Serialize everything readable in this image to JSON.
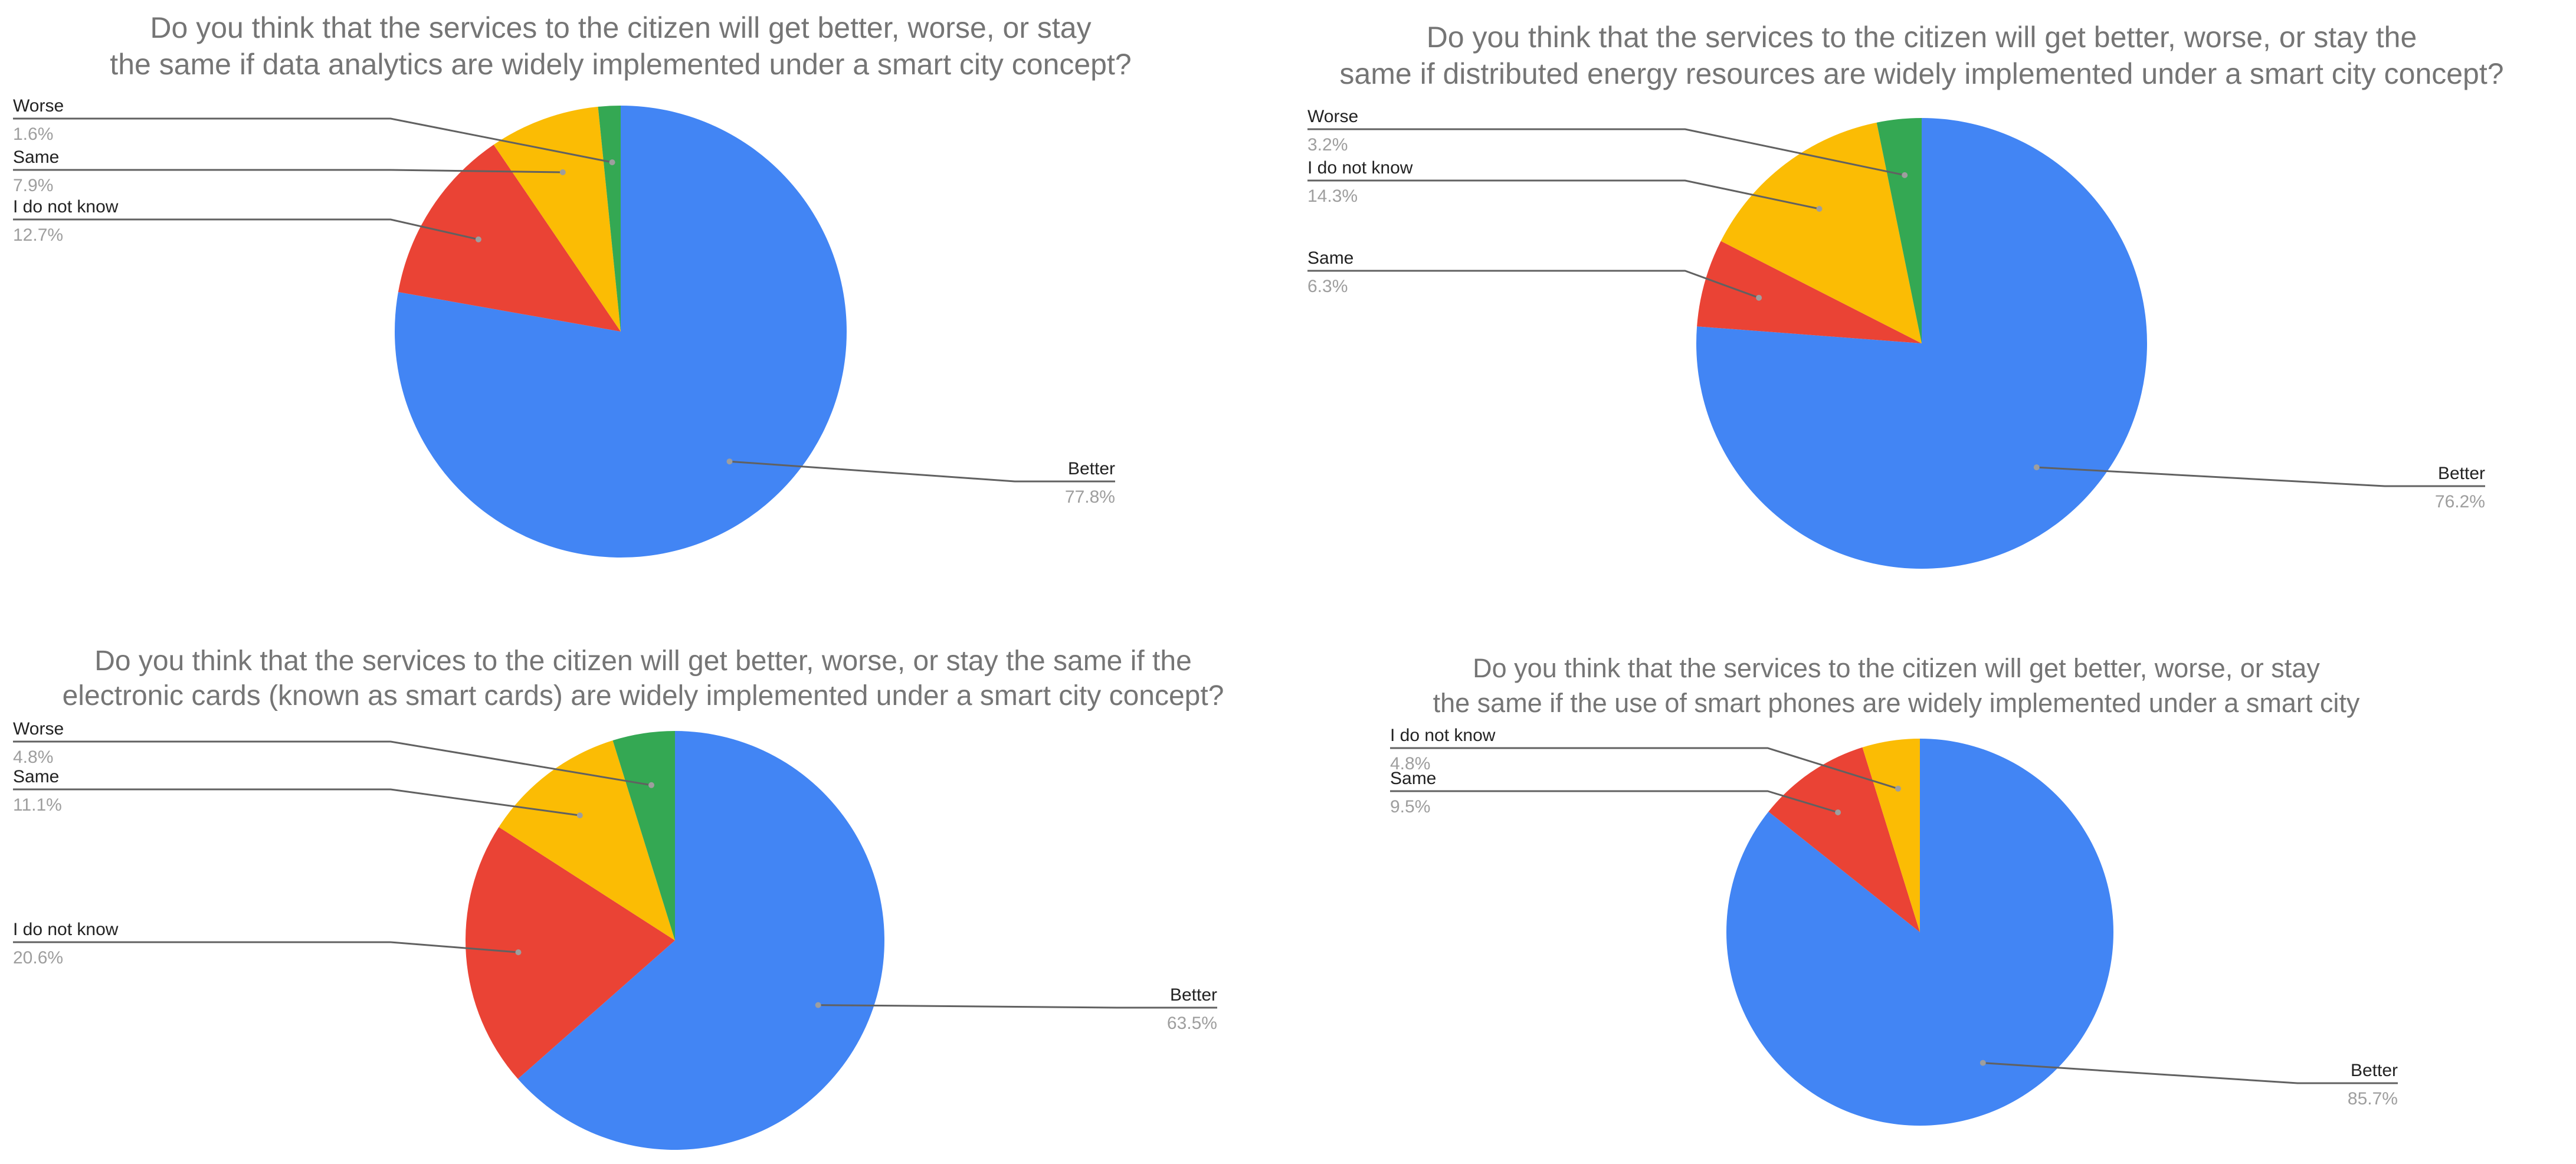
{
  "chart_data": [
    {
      "type": "pie",
      "title_lines": [
        "Do you think that the services to the citizen will get better, worse, or stay",
        "the same if data analytics are widely implemented under a smart city concept?"
      ],
      "slices": [
        {
          "label": "Better",
          "value": 77.8,
          "value_label": "77.8%",
          "color": "#4285f4"
        },
        {
          "label": "I do not know",
          "value": 12.7,
          "value_label": "12.7%",
          "color": "#ea4335"
        },
        {
          "label": "Same",
          "value": 7.9,
          "value_label": "7.9%",
          "color": "#fbbc04"
        },
        {
          "label": "Worse",
          "value": 1.6,
          "value_label": "1.6%",
          "color": "#34a853"
        }
      ]
    },
    {
      "type": "pie",
      "title_lines": [
        "Do you think that the services to the citizen will get better, worse, or stay the",
        "same if distributed energy resources are widely implemented under a smart city concept?"
      ],
      "slices": [
        {
          "label": "Better",
          "value": 76.2,
          "value_label": "76.2%",
          "color": "#4285f4"
        },
        {
          "label": "Same",
          "value": 6.3,
          "value_label": "6.3%",
          "color": "#ea4335"
        },
        {
          "label": "I do not know",
          "value": 14.3,
          "value_label": "14.3%",
          "color": "#fbbc04"
        },
        {
          "label": "Worse",
          "value": 3.2,
          "value_label": "3.2%",
          "color": "#34a853"
        }
      ]
    },
    {
      "type": "pie",
      "title_lines": [
        "Do you think that the services to the citizen will get better, worse, or stay the same if the",
        "electronic cards (known as smart cards) are widely implemented under a smart city concept?"
      ],
      "slices": [
        {
          "label": "Better",
          "value": 63.5,
          "value_label": "63.5%",
          "color": "#4285f4"
        },
        {
          "label": "I do not know",
          "value": 20.6,
          "value_label": "20.6%",
          "color": "#ea4335"
        },
        {
          "label": "Same",
          "value": 11.1,
          "value_label": "11.1%",
          "color": "#fbbc04"
        },
        {
          "label": "Worse",
          "value": 4.8,
          "value_label": "4.8%",
          "color": "#34a853"
        }
      ]
    },
    {
      "type": "pie",
      "title_lines": [
        "Do you think that the services to the citizen will get better, worse, or stay",
        "the same if the use of smart phones are widely implemented under a smart city"
      ],
      "slices": [
        {
          "label": "Better",
          "value": 85.7,
          "value_label": "85.7%",
          "color": "#4285f4"
        },
        {
          "label": "Same",
          "value": 9.5,
          "value_label": "9.5%",
          "color": "#ea4335"
        },
        {
          "label": "I do not know",
          "value": 4.8,
          "value_label": "4.8%",
          "color": "#fbbc04"
        }
      ]
    }
  ]
}
